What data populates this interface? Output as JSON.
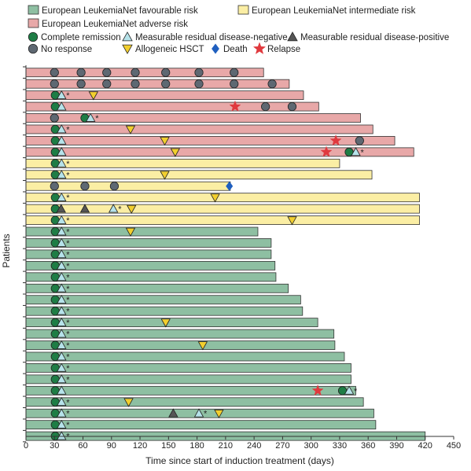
{
  "chart_data": {
    "type": "swimmer",
    "xlabel": "Time since start of induction treatment (days)",
    "ylabel": "Patients",
    "xlim": [
      0,
      450
    ],
    "xticks": [
      0,
      30,
      60,
      90,
      120,
      150,
      180,
      210,
      240,
      270,
      300,
      330,
      360,
      390,
      420,
      450
    ],
    "risk_groups": [
      {
        "key": "fav",
        "label": "European LeukemiaNet favourable risk",
        "color": "#8ebfa2"
      },
      {
        "key": "int",
        "label": "European LeukemiaNet intermediate risk",
        "color": "#fbeea4"
      },
      {
        "key": "adv",
        "label": "European LeukemiaNet adverse risk",
        "color": "#e8a8a8"
      }
    ],
    "event_types": [
      {
        "key": "cr",
        "label": "Complete remission",
        "shape": "circle",
        "color": "#1e7d45"
      },
      {
        "key": "mrdneg",
        "label": "Measurable residual disease-negative",
        "shape": "triangle-up",
        "color": "#b6e3ea"
      },
      {
        "key": "mrdpos",
        "label": "Measurable residual disease-positive",
        "shape": "triangle-up",
        "color": "#555555"
      },
      {
        "key": "nr",
        "label": "No response",
        "shape": "circle",
        "color": "#5e6872"
      },
      {
        "key": "hsct",
        "label": "Allogeneic HSCT",
        "shape": "triangle-down",
        "color": "#f2cf2e"
      },
      {
        "key": "death",
        "label": "Death",
        "shape": "diamond",
        "color": "#1f5fbf"
      },
      {
        "key": "relapse",
        "label": "Relapse",
        "shape": "star",
        "color": "#e0393e"
      }
    ],
    "ongoing_marker": "*",
    "patients": [
      {
        "risk": "adv",
        "end": 250,
        "ongoing": false,
        "events": [
          {
            "t": 30,
            "type": "nr"
          },
          {
            "t": 58,
            "type": "nr"
          },
          {
            "t": 85,
            "type": "nr"
          },
          {
            "t": 115,
            "type": "nr"
          },
          {
            "t": 147,
            "type": "nr"
          },
          {
            "t": 182,
            "type": "nr"
          },
          {
            "t": 219,
            "type": "nr"
          }
        ]
      },
      {
        "risk": "adv",
        "end": 277,
        "ongoing": false,
        "events": [
          {
            "t": 30,
            "type": "nr"
          },
          {
            "t": 58,
            "type": "nr"
          },
          {
            "t": 85,
            "type": "nr"
          },
          {
            "t": 115,
            "type": "nr"
          },
          {
            "t": 147,
            "type": "nr"
          },
          {
            "t": 182,
            "type": "nr"
          },
          {
            "t": 219,
            "type": "nr"
          },
          {
            "t": 259,
            "type": "nr"
          }
        ]
      },
      {
        "risk": "adv",
        "end": 292,
        "ongoing": true,
        "events": [
          {
            "t": 30,
            "type": "cr"
          },
          {
            "t": 35,
            "type": "mrdneg"
          },
          {
            "t": 71,
            "type": "hsct"
          }
        ]
      },
      {
        "risk": "adv",
        "end": 308,
        "ongoing": false,
        "events": [
          {
            "t": 30,
            "type": "cr"
          },
          {
            "t": 35,
            "type": "mrdneg"
          },
          {
            "t": 220,
            "type": "relapse"
          },
          {
            "t": 252,
            "type": "nr"
          },
          {
            "t": 280,
            "type": "nr"
          }
        ]
      },
      {
        "risk": "adv",
        "end": 352,
        "ongoing": true,
        "events": [
          {
            "t": 30,
            "type": "nr"
          },
          {
            "t": 62,
            "type": "cr"
          },
          {
            "t": 68,
            "type": "mrdneg"
          }
        ]
      },
      {
        "risk": "adv",
        "end": 365,
        "ongoing": true,
        "events": [
          {
            "t": 30,
            "type": "cr"
          },
          {
            "t": 35,
            "type": "mrdneg"
          },
          {
            "t": 110,
            "type": "hsct"
          }
        ]
      },
      {
        "risk": "adv",
        "end": 388,
        "ongoing": false,
        "events": [
          {
            "t": 30,
            "type": "cr"
          },
          {
            "t": 35,
            "type": "mrdneg"
          },
          {
            "t": 146,
            "type": "hsct"
          },
          {
            "t": 326,
            "type": "relapse"
          },
          {
            "t": 351,
            "type": "nr"
          }
        ]
      },
      {
        "risk": "adv",
        "end": 408,
        "ongoing": true,
        "events": [
          {
            "t": 30,
            "type": "cr"
          },
          {
            "t": 35,
            "type": "mrdneg"
          },
          {
            "t": 157,
            "type": "hsct"
          },
          {
            "t": 316,
            "type": "relapse"
          },
          {
            "t": 340,
            "type": "cr"
          },
          {
            "t": 347,
            "type": "mrdneg"
          }
        ]
      },
      {
        "risk": "int",
        "end": 330,
        "ongoing": true,
        "events": [
          {
            "t": 30,
            "type": "cr"
          },
          {
            "t": 35,
            "type": "mrdneg"
          }
        ]
      },
      {
        "risk": "int",
        "end": 364,
        "ongoing": true,
        "events": [
          {
            "t": 30,
            "type": "cr"
          },
          {
            "t": 35,
            "type": "mrdneg"
          },
          {
            "t": 146,
            "type": "hsct"
          }
        ]
      },
      {
        "risk": "int",
        "end": 215,
        "ongoing": false,
        "events": [
          {
            "t": 30,
            "type": "nr"
          },
          {
            "t": 62,
            "type": "nr"
          },
          {
            "t": 93,
            "type": "nr"
          },
          {
            "t": 214,
            "type": "death"
          }
        ]
      },
      {
        "risk": "int",
        "end": 414,
        "ongoing": true,
        "events": [
          {
            "t": 30,
            "type": "cr"
          },
          {
            "t": 35,
            "type": "mrdneg"
          },
          {
            "t": 199,
            "type": "hsct"
          }
        ]
      },
      {
        "risk": "int",
        "end": 414,
        "ongoing": false,
        "events": [
          {
            "t": 30,
            "type": "cr"
          },
          {
            "t": 37,
            "type": "mrdpos"
          },
          {
            "t": 62,
            "type": "mrdpos"
          },
          {
            "t": 92,
            "type": "mrdneg",
            "ongoing_after": true
          },
          {
            "t": 111,
            "type": "hsct"
          }
        ]
      },
      {
        "risk": "int",
        "end": 414,
        "ongoing": true,
        "events": [
          {
            "t": 30,
            "type": "cr"
          },
          {
            "t": 35,
            "type": "mrdneg"
          },
          {
            "t": 280,
            "type": "hsct"
          }
        ]
      },
      {
        "risk": "fav",
        "end": 244,
        "ongoing": true,
        "events": [
          {
            "t": 30,
            "type": "cr"
          },
          {
            "t": 35,
            "type": "mrdneg"
          },
          {
            "t": 110,
            "type": "hsct"
          }
        ]
      },
      {
        "risk": "fav",
        "end": 258,
        "ongoing": true,
        "events": [
          {
            "t": 30,
            "type": "cr"
          },
          {
            "t": 35,
            "type": "mrdneg"
          }
        ]
      },
      {
        "risk": "fav",
        "end": 258,
        "ongoing": true,
        "events": [
          {
            "t": 30,
            "type": "cr"
          },
          {
            "t": 35,
            "type": "mrdneg"
          }
        ]
      },
      {
        "risk": "fav",
        "end": 262,
        "ongoing": true,
        "events": [
          {
            "t": 30,
            "type": "cr"
          },
          {
            "t": 35,
            "type": "mrdneg"
          }
        ]
      },
      {
        "risk": "fav",
        "end": 263,
        "ongoing": true,
        "events": [
          {
            "t": 30,
            "type": "cr"
          },
          {
            "t": 35,
            "type": "mrdneg"
          }
        ]
      },
      {
        "risk": "fav",
        "end": 276,
        "ongoing": true,
        "events": [
          {
            "t": 30,
            "type": "cr"
          },
          {
            "t": 35,
            "type": "mrdneg"
          }
        ]
      },
      {
        "risk": "fav",
        "end": 289,
        "ongoing": true,
        "events": [
          {
            "t": 30,
            "type": "cr"
          },
          {
            "t": 35,
            "type": "mrdneg"
          }
        ]
      },
      {
        "risk": "fav",
        "end": 291,
        "ongoing": true,
        "events": [
          {
            "t": 30,
            "type": "cr"
          },
          {
            "t": 35,
            "type": "mrdneg"
          }
        ]
      },
      {
        "risk": "fav",
        "end": 307,
        "ongoing": true,
        "events": [
          {
            "t": 30,
            "type": "cr"
          },
          {
            "t": 35,
            "type": "mrdneg"
          },
          {
            "t": 147,
            "type": "hsct"
          }
        ]
      },
      {
        "risk": "fav",
        "end": 324,
        "ongoing": true,
        "events": [
          {
            "t": 30,
            "type": "cr"
          },
          {
            "t": 35,
            "type": "mrdneg"
          }
        ]
      },
      {
        "risk": "fav",
        "end": 325,
        "ongoing": true,
        "events": [
          {
            "t": 30,
            "type": "cr"
          },
          {
            "t": 35,
            "type": "mrdneg"
          },
          {
            "t": 186,
            "type": "hsct"
          }
        ]
      },
      {
        "risk": "fav",
        "end": 335,
        "ongoing": true,
        "events": [
          {
            "t": 30,
            "type": "cr"
          },
          {
            "t": 35,
            "type": "mrdneg"
          }
        ]
      },
      {
        "risk": "fav",
        "end": 342,
        "ongoing": true,
        "events": [
          {
            "t": 30,
            "type": "cr"
          },
          {
            "t": 35,
            "type": "mrdneg"
          }
        ]
      },
      {
        "risk": "fav",
        "end": 342,
        "ongoing": true,
        "events": [
          {
            "t": 30,
            "type": "cr"
          },
          {
            "t": 35,
            "type": "mrdneg"
          }
        ]
      },
      {
        "risk": "fav",
        "end": 347,
        "ongoing": true,
        "events": [
          {
            "t": 30,
            "type": "cr"
          },
          {
            "t": 35,
            "type": "mrdneg"
          },
          {
            "t": 307,
            "type": "relapse"
          },
          {
            "t": 333,
            "type": "cr"
          },
          {
            "t": 340,
            "type": "mrdneg"
          }
        ]
      },
      {
        "risk": "fav",
        "end": 355,
        "ongoing": true,
        "events": [
          {
            "t": 30,
            "type": "cr"
          },
          {
            "t": 35,
            "type": "mrdneg"
          },
          {
            "t": 108,
            "type": "hsct"
          }
        ]
      },
      {
        "risk": "fav",
        "end": 366,
        "ongoing": false,
        "events": [
          {
            "t": 30,
            "type": "cr"
          },
          {
            "t": 35,
            "type": "mrdneg",
            "ongoing_after": true
          },
          {
            "t": 155,
            "type": "mrdpos"
          },
          {
            "t": 182,
            "type": "mrdneg",
            "ongoing_after": true
          },
          {
            "t": 203,
            "type": "hsct"
          }
        ]
      },
      {
        "risk": "fav",
        "end": 368,
        "ongoing": true,
        "events": [
          {
            "t": 30,
            "type": "cr"
          },
          {
            "t": 35,
            "type": "mrdneg"
          }
        ]
      },
      {
        "risk": "fav",
        "end": 420,
        "ongoing": true,
        "events": [
          {
            "t": 30,
            "type": "cr"
          },
          {
            "t": 35,
            "type": "mrdneg"
          }
        ]
      }
    ]
  }
}
